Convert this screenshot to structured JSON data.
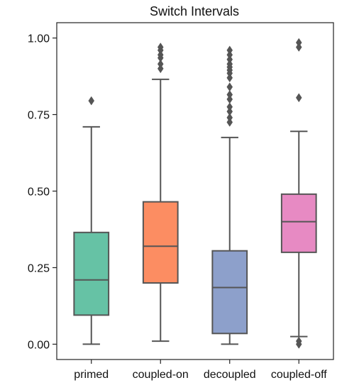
{
  "chart_data": {
    "type": "boxplot",
    "title": "Switch Intervals",
    "xlabel": "",
    "ylabel": "",
    "ylim": [
      -0.05,
      1.05
    ],
    "yticks": [
      0.0,
      0.25,
      0.5,
      0.75,
      1.0
    ],
    "ytick_labels": [
      "0.00",
      "0.25",
      "0.50",
      "0.75",
      "1.00"
    ],
    "grid": false,
    "categories": [
      "primed",
      "coupled-on",
      "decoupled",
      "coupled-off"
    ],
    "boxes": [
      {
        "category": "primed",
        "color": "#66c2a5",
        "whisker_low": 0.0,
        "q1": 0.095,
        "median": 0.21,
        "q3": 0.365,
        "whisker_high": 0.71,
        "outliers": [
          0.795
        ]
      },
      {
        "category": "coupled-on",
        "color": "#fc8d62",
        "whisker_low": 0.01,
        "q1": 0.2,
        "median": 0.32,
        "q3": 0.465,
        "whisker_high": 0.865,
        "outliers": [
          0.9,
          0.915,
          0.935,
          0.945,
          0.96,
          0.97
        ]
      },
      {
        "category": "decoupled",
        "color": "#8da0cb",
        "whisker_low": 0.0,
        "q1": 0.035,
        "median": 0.185,
        "q3": 0.305,
        "whisker_high": 0.675,
        "outliers": [
          0.725,
          0.74,
          0.76,
          0.775,
          0.8,
          0.815,
          0.84,
          0.87,
          0.885,
          0.895,
          0.905,
          0.915,
          0.93,
          0.945,
          0.96
        ]
      },
      {
        "category": "coupled-off",
        "color": "#e78ac3",
        "whisker_low": 0.025,
        "q1": 0.3,
        "median": 0.4,
        "q3": 0.49,
        "whisker_high": 0.695,
        "outliers": [
          0.0,
          0.01,
          0.805,
          0.97,
          0.985
        ]
      }
    ]
  }
}
